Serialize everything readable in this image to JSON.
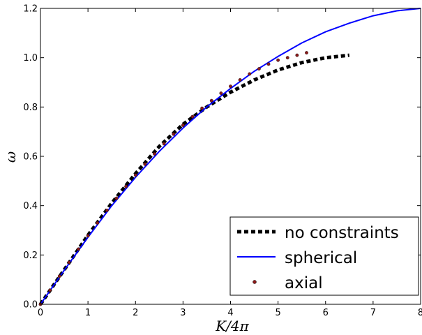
{
  "chart_data": {
    "type": "line",
    "xlabel": "K/4π",
    "ylabel": "ω",
    "xlim": [
      0,
      8
    ],
    "ylim": [
      0,
      1.2
    ],
    "xticks": [
      "0",
      "1",
      "2",
      "3",
      "4",
      "5",
      "6",
      "7",
      "8"
    ],
    "yticks": [
      "0.0",
      "0.2",
      "0.4",
      "0.6",
      "0.8",
      "1.0",
      "1.2"
    ],
    "grid": false,
    "legend_position": "bottom-right",
    "series": [
      {
        "name": "no constraints",
        "style": "dashed",
        "color": "#000000",
        "x": [
          0,
          0.5,
          1,
          1.5,
          2,
          2.5,
          3,
          3.5,
          4,
          4.5,
          5,
          5.5,
          6,
          6.5
        ],
        "y": [
          0,
          0.14,
          0.28,
          0.41,
          0.53,
          0.64,
          0.73,
          0.8,
          0.86,
          0.91,
          0.95,
          0.98,
          1.0,
          1.01
        ]
      },
      {
        "name": "spherical",
        "style": "solid",
        "color": "#0000ff",
        "x": [
          0,
          0.5,
          1,
          1.5,
          2,
          2.5,
          3,
          3.5,
          4,
          4.5,
          5,
          5.5,
          6,
          6.5,
          7,
          7.5,
          8
        ],
        "y": [
          0,
          0.138,
          0.272,
          0.4,
          0.515,
          0.62,
          0.715,
          0.8,
          0.875,
          0.945,
          1.005,
          1.06,
          1.105,
          1.14,
          1.17,
          1.19,
          1.2
        ]
      },
      {
        "name": "axial",
        "style": "dots",
        "color": "#8b1a1a",
        "x": [
          0,
          0.2,
          0.4,
          0.6,
          0.8,
          1.0,
          1.2,
          1.4,
          1.6,
          1.8,
          2.0,
          2.2,
          2.4,
          2.6,
          2.8,
          3.0,
          3.2,
          3.4,
          3.6,
          3.8,
          4.0,
          4.2,
          4.4,
          4.6,
          4.8,
          5.0,
          5.2,
          5.4,
          5.6
        ],
        "y": [
          0,
          0.057,
          0.114,
          0.17,
          0.224,
          0.278,
          0.33,
          0.381,
          0.43,
          0.478,
          0.524,
          0.568,
          0.61,
          0.651,
          0.69,
          0.726,
          0.761,
          0.795,
          0.826,
          0.856,
          0.884,
          0.91,
          0.934,
          0.955,
          0.974,
          0.99,
          1.0,
          1.01,
          1.02
        ]
      }
    ]
  }
}
